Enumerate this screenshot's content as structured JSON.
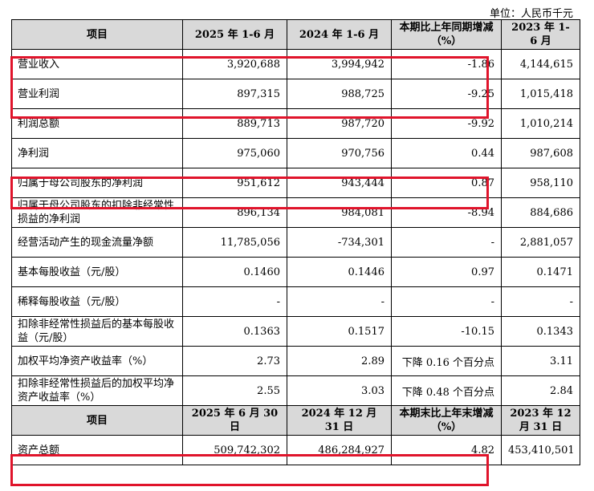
{
  "unit": "单位：人民币千元",
  "header1": [
    "项目",
    "2025 年 1-6 月",
    "2024 年 1-6 月",
    "本期比上年同期增减（%）",
    "2023 年 1-6 月"
  ],
  "rows1": [
    [
      "营业收入",
      "3,920,688",
      "3,994,942",
      "-1.86",
      "4,144,615"
    ],
    [
      "营业利润",
      "897,315",
      "988,725",
      "-9.25",
      "1,015,418"
    ],
    [
      "利润总额",
      "889,713",
      "987,720",
      "-9.92",
      "1,010,214"
    ],
    [
      "净利润",
      "975,060",
      "970,756",
      "0.44",
      "987,608"
    ],
    [
      "归属于母公司股东的净利润",
      "951,612",
      "943,444",
      "0.87",
      "958,110"
    ],
    [
      "归属于母公司股东的扣除非经常性损益的净利润",
      "896,134",
      "984,081",
      "-8.94",
      "884,686"
    ],
    [
      "经营活动产生的现金流量净额",
      "11,785,056",
      "-734,301",
      "-",
      "2,881,057"
    ],
    [
      "基本每股收益（元/股）",
      "0.1460",
      "0.1446",
      "0.97",
      "0.1471"
    ],
    [
      "稀释每股收益（元/股）",
      "-",
      "-",
      "-",
      "-"
    ],
    [
      "扣除非经常性损益后的基本每股收益（元/股）",
      "0.1363",
      "0.1517",
      "-10.15",
      "0.1343"
    ],
    [
      "加权平均净资产收益率（%）",
      "2.73",
      "2.89",
      "下降 0.16 个百分点",
      "3.11"
    ],
    [
      "扣除非经常性损益后的加权平均净资产收益率（%）",
      "2.55",
      "3.03",
      "下降 0.48 个百分点",
      "2.84"
    ]
  ],
  "header2": [
    "项目",
    "2025 年 6 月 30 日",
    "2024 年 12 月 31 日",
    "本期末比上年末增减（%）",
    "2023 年 12 月 31 日"
  ],
  "rows2": [
    [
      "资产总额",
      "509,742,302",
      "486,284,927",
      "4.82",
      "453,410,501"
    ]
  ],
  "highlight_color": "#e0142b"
}
